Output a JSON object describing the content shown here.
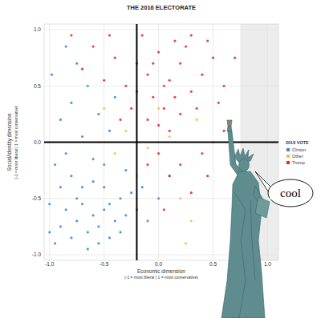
{
  "chart_data": {
    "type": "scatter",
    "title": "THE 2016 ELECTORATE",
    "x_label": "Economic dimension",
    "x_label_note": "(-1 = most liberal | 1 = most conservative)",
    "y_label": "Social/Identity dimension",
    "y_label_note": "(-1 = most liberal | 1 = most conservative)",
    "legend_title": "2016 VOTE",
    "legend": "right",
    "grid": true,
    "marker": "circle",
    "xlim": [
      -1.05,
      1.1
    ],
    "ylim": [
      -1.05,
      1.05
    ],
    "xticks": [
      {
        "value": -1,
        "label": "-1.0"
      },
      {
        "value": -0.5,
        "label": "-0.5"
      },
      {
        "value": 0,
        "label": "0.0"
      },
      {
        "value": 0.5,
        "label": "0.5"
      },
      {
        "value": 1,
        "label": "1.0"
      }
    ],
    "yticks": [
      {
        "value": -1,
        "label": "-1.0"
      },
      {
        "value": -0.5,
        "label": "-0.5"
      },
      {
        "value": 0,
        "label": "0.0"
      },
      {
        "value": 0.5,
        "label": "0.5"
      },
      {
        "value": 1,
        "label": "1.0"
      }
    ],
    "reference_lines": {
      "x": -0.2,
      "y": 0
    },
    "shaded_x": [
      0.75,
      1.1
    ],
    "annotations": [
      {
        "text": "cool"
      }
    ],
    "series": [
      {
        "name": "Clinton",
        "color": "#2a8be0",
        "x": [
          -0.95,
          -0.9,
          -0.85,
          -0.8,
          -0.75,
          -0.7,
          -0.65,
          -0.6,
          -0.55,
          -0.5,
          -0.45,
          -0.4,
          -0.35,
          -0.3,
          -0.25,
          -0.9,
          -0.8,
          -0.7,
          -0.6,
          -0.5,
          -0.65,
          -0.55,
          -0.75,
          -0.45,
          -0.35,
          -0.2,
          -0.15,
          -0.1,
          0.0,
          0.1,
          -0.95,
          -0.85,
          -0.7,
          -0.6,
          -0.9,
          -0.8,
          -0.65,
          -0.75,
          -0.55,
          -0.45,
          -0.4,
          -0.85,
          -0.5,
          -0.3,
          -1.0,
          -1.0,
          -0.98
        ],
        "values": [
          -0.9,
          -0.75,
          -0.6,
          -0.85,
          -0.7,
          -0.55,
          -0.8,
          -0.65,
          -0.75,
          -0.6,
          -0.85,
          -0.7,
          -0.5,
          -0.65,
          -0.45,
          -0.4,
          -0.3,
          -0.4,
          -0.35,
          -0.4,
          -0.95,
          -0.9,
          -0.5,
          -0.55,
          -0.8,
          -0.6,
          -0.4,
          -0.7,
          -0.5,
          -0.3,
          -0.2,
          -0.1,
          0.05,
          -0.15,
          0.2,
          0.35,
          0.5,
          0.7,
          0.25,
          0.1,
          0.4,
          0.85,
          -0.2,
          -0.25,
          -0.55,
          -0.8,
          0.6
        ]
      },
      {
        "name": "Other",
        "color": "#e8c440",
        "x": [
          -0.3,
          -0.1,
          0.1,
          0.2,
          -0.5,
          -0.2,
          0.35,
          0.5,
          0.3,
          -0.4,
          0.0,
          0.25
        ],
        "values": [
          0.1,
          -0.05,
          0.05,
          -0.5,
          0.3,
          -0.3,
          0.2,
          0.0,
          -0.7,
          -0.1,
          0.3,
          -0.9
        ]
      },
      {
        "name": "Trump",
        "color": "#e8262c",
        "x": [
          -0.3,
          -0.2,
          -0.1,
          0.0,
          0.1,
          0.2,
          0.3,
          -0.05,
          0.05,
          0.15,
          -0.15,
          0.25,
          0.4,
          0.5,
          0.35,
          -0.25,
          -0.4,
          -0.5,
          -0.6,
          -0.45,
          -0.35,
          0.0,
          0.1,
          0.2,
          -0.1,
          0.45,
          0.6,
          0.55,
          0.3,
          -0.05,
          0.05,
          0.15,
          -0.2,
          -0.7,
          -0.8,
          0.0,
          0.1,
          0.2,
          0.3,
          0.4,
          -0.1,
          0.05,
          0.45,
          0.6,
          0.7
        ],
        "values": [
          0.5,
          0.7,
          0.6,
          0.8,
          0.55,
          0.7,
          0.45,
          0.4,
          0.3,
          0.9,
          0.95,
          0.85,
          0.6,
          0.75,
          0.3,
          0.3,
          0.75,
          0.55,
          0.85,
          0.95,
          0.2,
          0.15,
          0.1,
          0.25,
          0.2,
          0.9,
          0.5,
          0.35,
          0.95,
          0.7,
          0.5,
          0.4,
          0.45,
          0.65,
          0.95,
          -0.1,
          -0.3,
          -0.2,
          -0.45,
          -0.1,
          -0.2,
          -0.6,
          -0.3,
          0.1,
          0.75
        ]
      }
    ]
  }
}
